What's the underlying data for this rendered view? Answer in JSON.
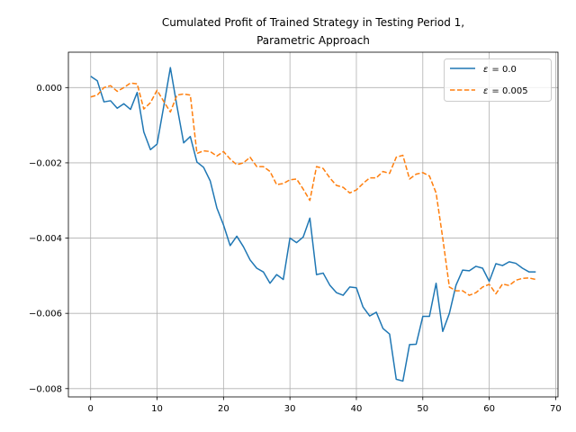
{
  "chart_data": {
    "type": "line",
    "title_line1": "Cumulated Profit of Trained Strategy in Testing Period 1,",
    "title_line2": "Parametric Approach",
    "xlabel": "",
    "ylabel": "",
    "xlim": [
      -3.35,
      70.35
    ],
    "ylim": [
      -0.00822,
      0.00094
    ],
    "xticks": [
      0,
      10,
      20,
      30,
      40,
      50,
      60,
      70
    ],
    "yticks": [
      -0.008,
      -0.006,
      -0.004,
      -0.002,
      0.0
    ],
    "ytick_labels": [
      "−0.008",
      "−0.006",
      "−0.004",
      "−0.002",
      "0.000"
    ],
    "grid": true,
    "legend_position": "top-right",
    "series": [
      {
        "name": "ε = 0.0",
        "legend_symbol": "ε",
        "legend_value": "= 0.0",
        "color": "#1f77b4",
        "dash": "solid",
        "values": [
          0.0003,
          0.00018,
          -0.00038,
          -0.00035,
          -0.00055,
          -0.00043,
          -0.00058,
          -0.00013,
          -0.00118,
          -0.00165,
          -0.0015,
          -0.0005,
          0.00053,
          -0.0005,
          -0.00147,
          -0.0013,
          -0.00198,
          -0.00212,
          -0.00248,
          -0.0032,
          -0.00365,
          -0.0042,
          -0.00395,
          -0.00423,
          -0.00458,
          -0.0048,
          -0.0049,
          -0.0052,
          -0.00497,
          -0.0051,
          -0.004,
          -0.00412,
          -0.00397,
          -0.00347,
          -0.00497,
          -0.00493,
          -0.00525,
          -0.00545,
          -0.00552,
          -0.0053,
          -0.00532,
          -0.00583,
          -0.00607,
          -0.00597,
          -0.0064,
          -0.00655,
          -0.00775,
          -0.0078,
          -0.00683,
          -0.00682,
          -0.00608,
          -0.00608,
          -0.0052,
          -0.00648,
          -0.006,
          -0.00525,
          -0.00485,
          -0.00487,
          -0.00475,
          -0.0048,
          -0.00515,
          -0.00468,
          -0.00473,
          -0.00463,
          -0.00467,
          -0.0048,
          -0.0049,
          -0.0049
        ]
      },
      {
        "name": "ε = 0.005",
        "legend_symbol": "ε",
        "legend_value": "= 0.005",
        "color": "#ff7f0e",
        "dash": "dashed",
        "values": [
          -0.00025,
          -0.0002,
          0.0,
          5e-05,
          -0.0001,
          0.0,
          0.00012,
          0.0001,
          -0.00057,
          -0.0004,
          -7e-05,
          -0.00037,
          -0.00065,
          -0.0002,
          -0.00017,
          -0.0002,
          -0.00175,
          -0.00168,
          -0.0017,
          -0.00182,
          -0.0017,
          -0.0019,
          -0.00205,
          -0.002,
          -0.00185,
          -0.0021,
          -0.0021,
          -0.00223,
          -0.00258,
          -0.00255,
          -0.00245,
          -0.00243,
          -0.0027,
          -0.003,
          -0.0021,
          -0.00215,
          -0.0024,
          -0.0026,
          -0.00265,
          -0.0028,
          -0.00272,
          -0.00255,
          -0.0024,
          -0.0024,
          -0.00223,
          -0.00228,
          -0.00185,
          -0.0018,
          -0.00243,
          -0.0023,
          -0.00226,
          -0.00235,
          -0.0028,
          -0.004,
          -0.0053,
          -0.0054,
          -0.0054,
          -0.00552,
          -0.00545,
          -0.0053,
          -0.00523,
          -0.00548,
          -0.00522,
          -0.00526,
          -0.00512,
          -0.00507,
          -0.00506,
          -0.0051
        ]
      }
    ]
  }
}
